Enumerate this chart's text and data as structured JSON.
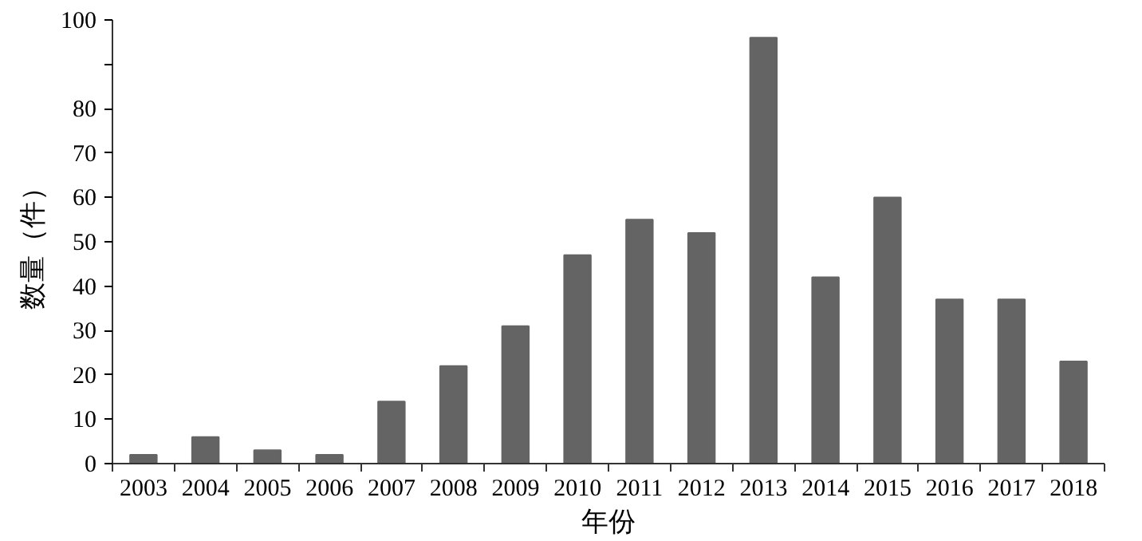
{
  "chart_data": {
    "type": "bar",
    "xlabel": "年份",
    "ylabel": "数量（件）",
    "categories": [
      "2003",
      "2004",
      "2005",
      "2006",
      "2007",
      "2008",
      "2009",
      "2010",
      "2011",
      "2012",
      "2013",
      "2014",
      "2015",
      "2016",
      "2017",
      "2018"
    ],
    "values": [
      2,
      6,
      3,
      2,
      14,
      22,
      31,
      47,
      55,
      52,
      96,
      42,
      60,
      37,
      37,
      23
    ],
    "color": "#646464",
    "ylim": [
      0,
      100
    ],
    "yticks": [
      0,
      10,
      20,
      30,
      40,
      50,
      60,
      70,
      80,
      {
        "value": 90,
        "label": null
      },
      100
    ],
    "grid": false
  }
}
